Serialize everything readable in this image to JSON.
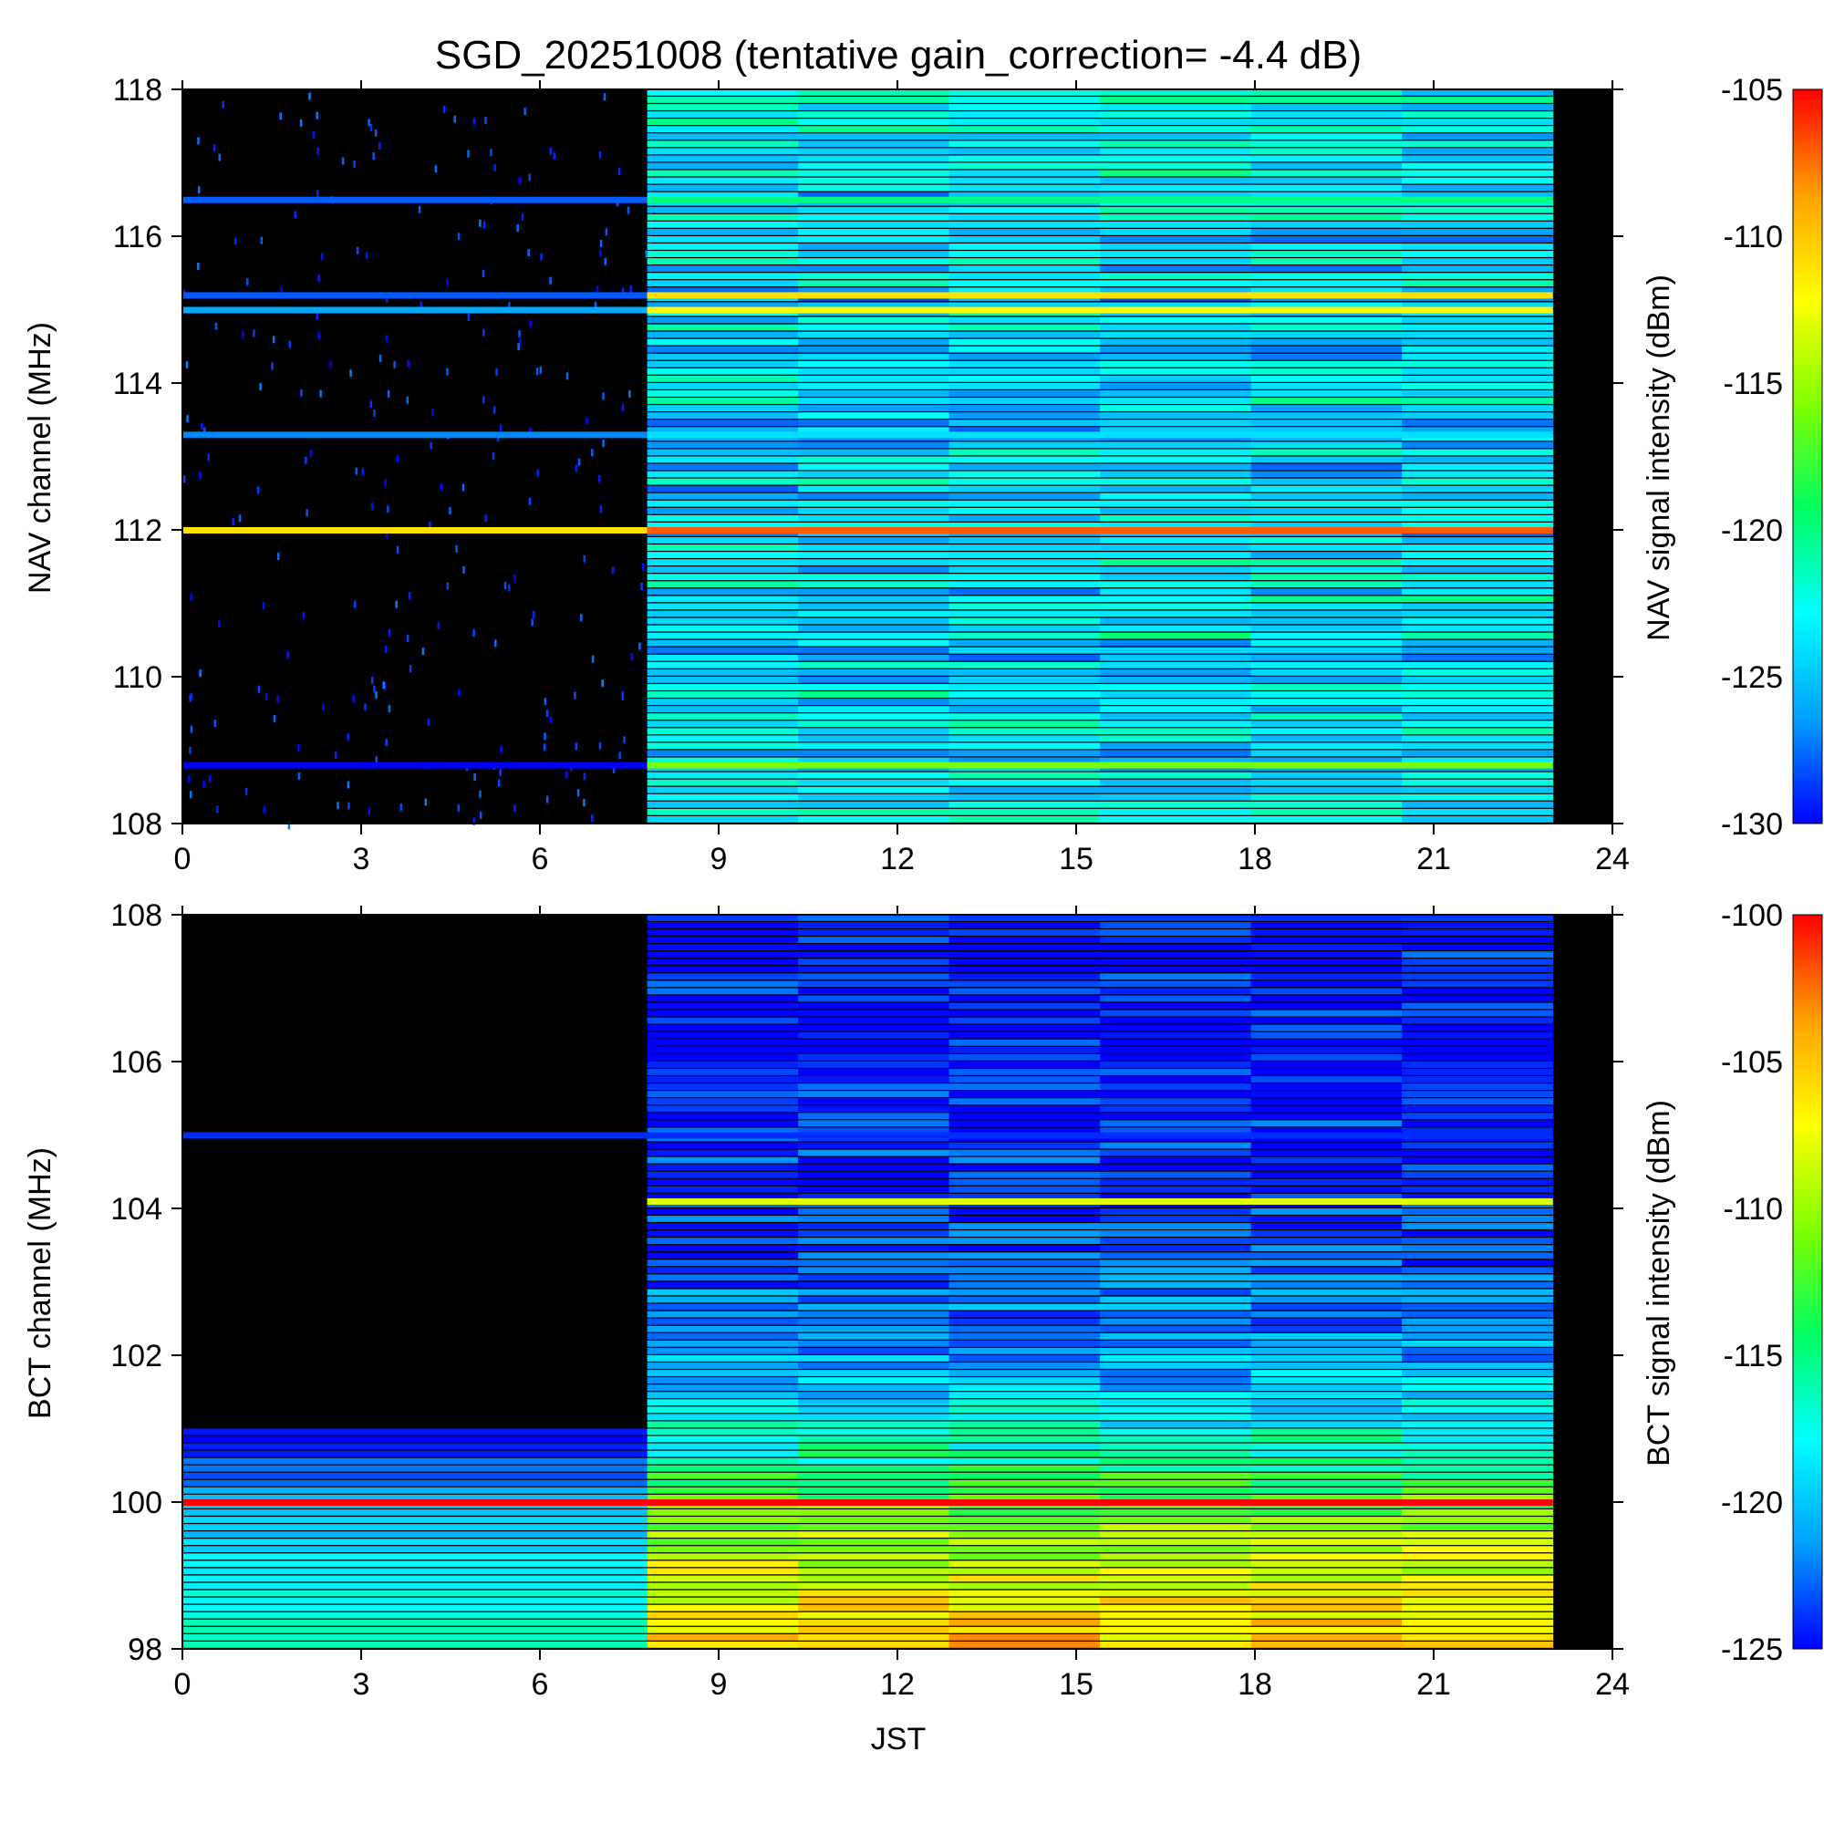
{
  "title": "SGD_20251008 (tentative gain_correction= -4.4 dB)",
  "colors": {
    "background": "#000000",
    "colormap": [
      "#0000ff",
      "#00a0ff",
      "#00ffff",
      "#00ff60",
      "#80ff00",
      "#ffff00",
      "#ffa000",
      "#ff0000"
    ]
  },
  "chart_data": [
    {
      "type": "heatmap",
      "name": "nav-panel",
      "xlabel": "",
      "ylabel": "NAV channel (MHz)",
      "colorbar_label": "NAV signal intensity (dBm)",
      "xlim": [
        0,
        24
      ],
      "ylim": [
        108,
        118
      ],
      "xticks": [
        "0",
        "3",
        "6",
        "9",
        "12",
        "15",
        "18",
        "21",
        "24"
      ],
      "yticks": [
        "108",
        "110",
        "112",
        "114",
        "116",
        "118"
      ],
      "clim": [
        -130,
        -105
      ],
      "cticks": [
        "-130",
        "-125",
        "-120",
        "-115",
        "-110",
        "-105"
      ],
      "data_coverage_hours": [
        0,
        23
      ],
      "receiver_active_from_hours": 7.8,
      "features": [
        {
          "freq": 112.0,
          "dbm_early": -111,
          "dbm_day": -107,
          "label": "strong carrier"
        },
        {
          "freq": 115.0,
          "dbm_early": -126,
          "dbm_day": -112,
          "label": "carrier"
        },
        {
          "freq": 115.2,
          "dbm_early": -128,
          "dbm_day": -111,
          "label": "carrier"
        },
        {
          "freq": 113.3,
          "dbm_early": -127,
          "dbm_day": -124,
          "label": "weak carrier"
        },
        {
          "freq": 116.5,
          "dbm_early": -128,
          "dbm_day": -120,
          "label": "weak carrier"
        },
        {
          "freq": 108.8,
          "dbm_early": -130,
          "dbm_day": -116,
          "label": "carrier"
        }
      ],
      "background_dbm": {
        "early": -130,
        "day": -124
      }
    },
    {
      "type": "heatmap",
      "name": "bct-panel",
      "xlabel": "JST",
      "ylabel": "BCT channel (MHz)",
      "colorbar_label": "BCT signal intensity (dBm)",
      "xlim": [
        0,
        24
      ],
      "ylim": [
        98,
        108
      ],
      "xticks": [
        "0",
        "3",
        "6",
        "9",
        "12",
        "15",
        "18",
        "21",
        "24"
      ],
      "yticks": [
        "98",
        "100",
        "102",
        "104",
        "106",
        "108"
      ],
      "clim": [
        -125,
        -100
      ],
      "cticks": [
        "-125",
        "-120",
        "-115",
        "-110",
        "-105",
        "-100"
      ],
      "data_coverage_hours": [
        0,
        23
      ],
      "receiver_active_from_hours": 7.8,
      "features": [
        {
          "freq": 100.0,
          "dbm_early": -100,
          "dbm_day": -100,
          "label": "strong carrier"
        },
        {
          "freq": 105.0,
          "dbm_early": -124,
          "dbm_day": -124,
          "label": "carrier"
        },
        {
          "freq": 104.1,
          "dbm_early": null,
          "dbm_day": -108,
          "label": "intermittent carrier"
        }
      ],
      "gradient_dbm": [
        {
          "freq": 98.0,
          "early": -116,
          "day": -105
        },
        {
          "freq": 99.0,
          "early": -118,
          "day": -108
        },
        {
          "freq": 100.0,
          "early": -121,
          "day": -112
        },
        {
          "freq": 101.0,
          "early": -125,
          "day": -118
        },
        {
          "freq": 102.0,
          "early": null,
          "day": -121
        },
        {
          "freq": 104.0,
          "early": null,
          "day": -124
        },
        {
          "freq": 108.0,
          "early": null,
          "day": -125
        }
      ]
    }
  ]
}
